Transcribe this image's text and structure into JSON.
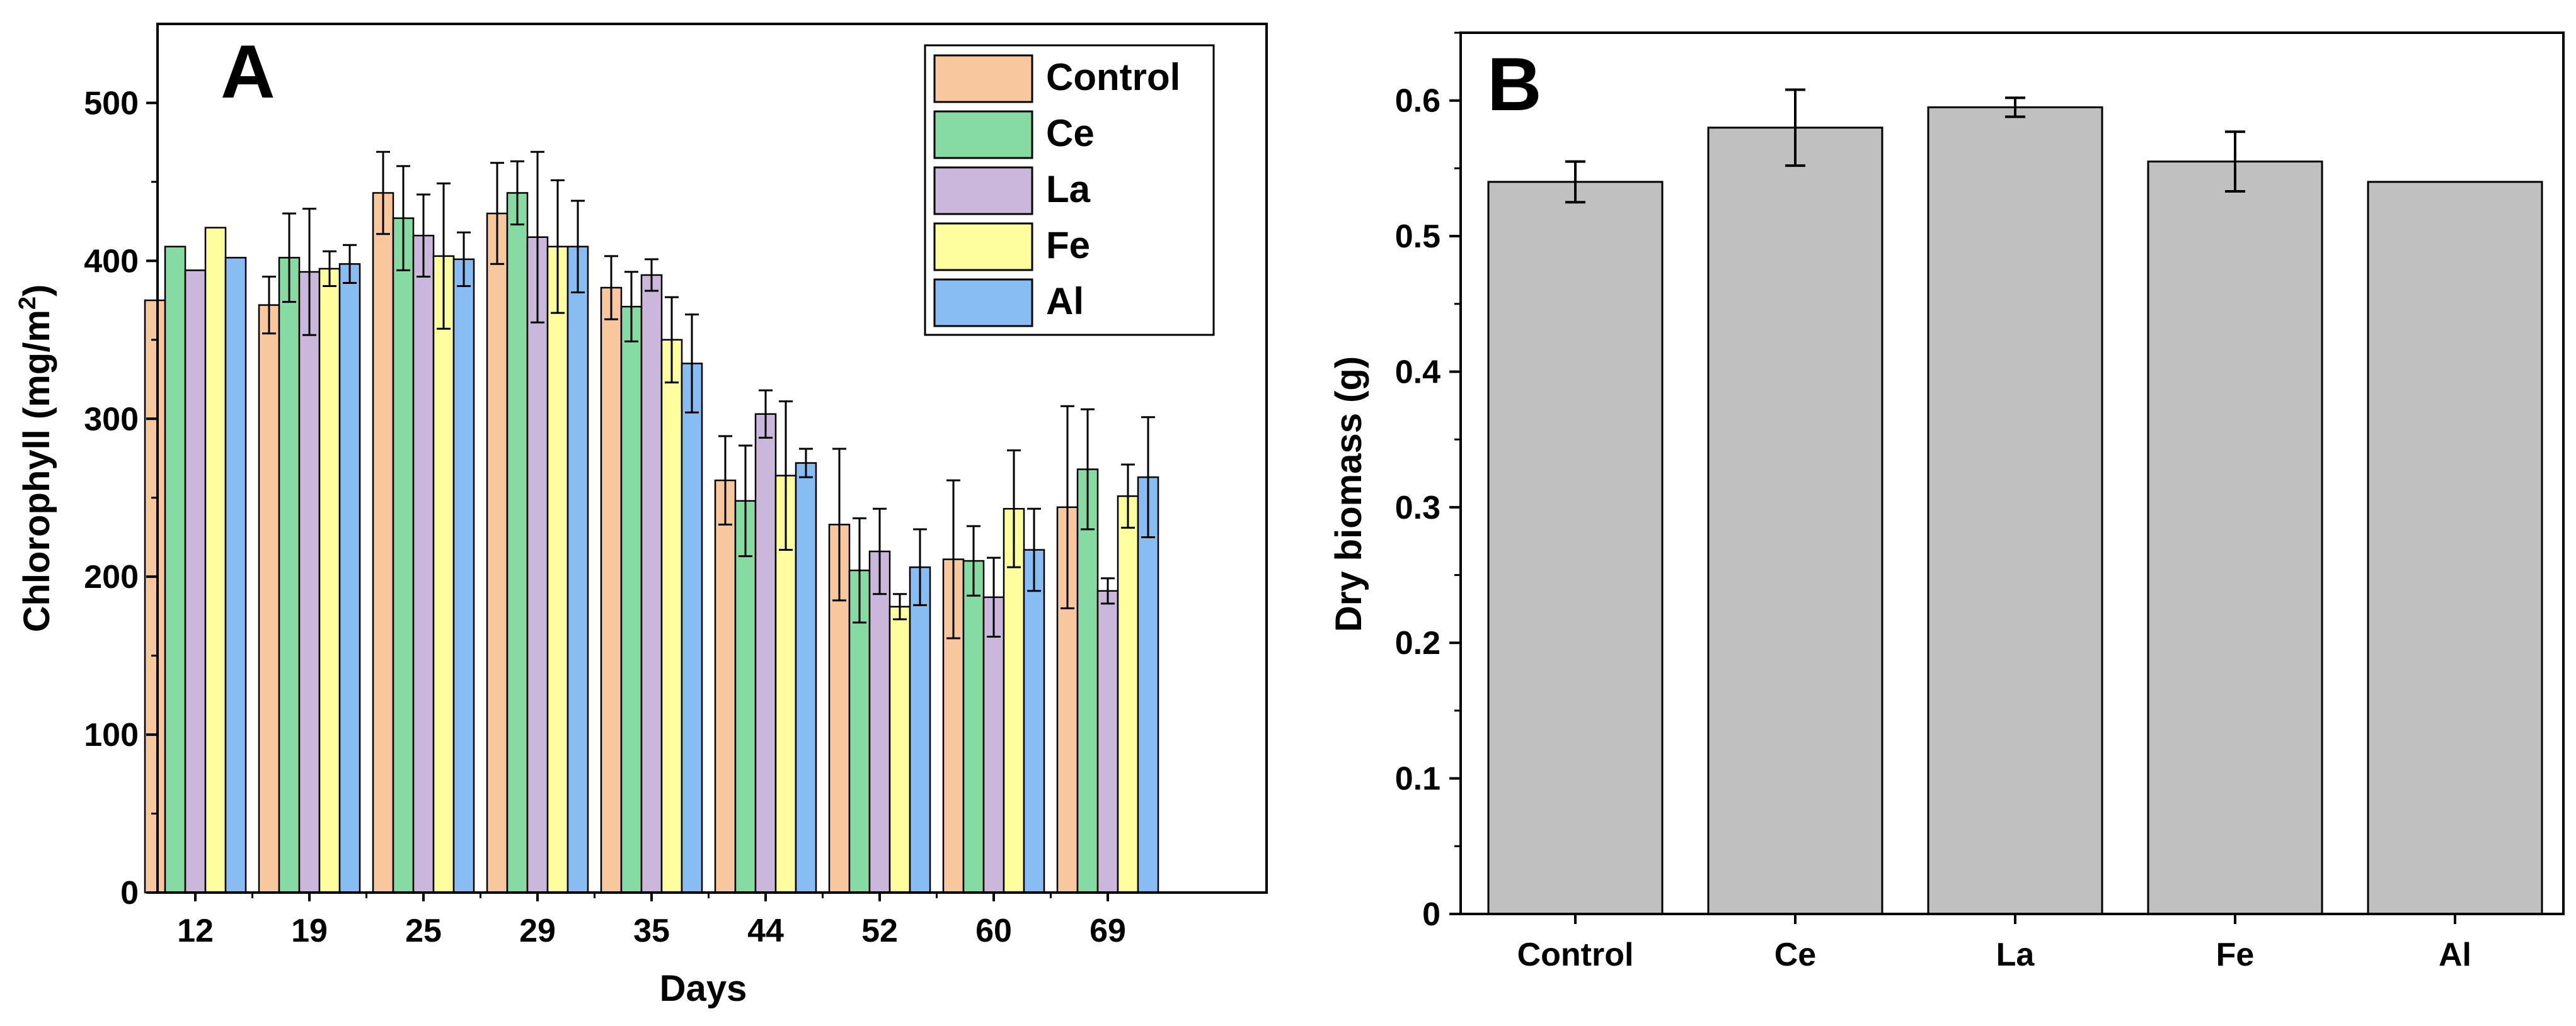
{
  "chart_data": [
    {
      "type": "bar",
      "panel_label": "A",
      "title": "",
      "xlabel": "Days",
      "ylabel": "Chlorophyll (mg/m",
      "ylabel_superscript": "2",
      "ylabel_suffix": ")",
      "ylim": [
        0,
        550
      ],
      "yticks": [
        0,
        100,
        200,
        300,
        400,
        500
      ],
      "grid": false,
      "legend_position": "top-right",
      "categories": [
        "12",
        "19",
        "25",
        "29",
        "35",
        "44",
        "52",
        "60",
        "69"
      ],
      "series": [
        {
          "name": "Control",
          "color": "#f9c79e",
          "values": [
            375,
            372,
            443,
            430,
            383,
            261,
            233,
            211,
            244
          ],
          "errors": [
            0,
            18,
            26,
            32,
            20,
            28,
            48,
            50,
            64
          ]
        },
        {
          "name": "Ce",
          "color": "#86dba3",
          "values": [
            409,
            402,
            427,
            443,
            371,
            248,
            204,
            210,
            268
          ],
          "errors": [
            0,
            28,
            33,
            20,
            22,
            35,
            33,
            22,
            38
          ]
        },
        {
          "name": "La",
          "color": "#cbb7db",
          "values": [
            394,
            393,
            416,
            415,
            391,
            303,
            216,
            187,
            191
          ],
          "errors": [
            0,
            40,
            26,
            54,
            10,
            15,
            27,
            25,
            8
          ]
        },
        {
          "name": "Fe",
          "color": "#fefe9f",
          "values": [
            421,
            395,
            403,
            409,
            350,
            264,
            181,
            243,
            251
          ],
          "errors": [
            0,
            11,
            46,
            42,
            27,
            47,
            8,
            37,
            20
          ]
        },
        {
          "name": "Al",
          "color": "#88bdf3",
          "values": [
            402,
            398,
            401,
            409,
            335,
            272,
            206,
            217,
            263
          ],
          "errors": [
            0,
            12,
            17,
            29,
            31,
            9,
            24,
            26,
            38
          ]
        }
      ]
    },
    {
      "type": "bar",
      "panel_label": "B",
      "title": "",
      "xlabel": "",
      "ylabel": "Dry biomass (g)",
      "ylim": [
        0,
        0.65
      ],
      "yticks": [
        0,
        0.1,
        0.2,
        0.3,
        0.4,
        0.5,
        0.6
      ],
      "ytick_labels": [
        "0",
        "0.1",
        "0.2",
        "0.3",
        "0.4",
        "0.5",
        "0.6"
      ],
      "grid": false,
      "categories": [
        "Control",
        "Ce",
        "La",
        "Fe",
        "Al"
      ],
      "bar_color": "#c0c0c0",
      "values": [
        0.54,
        0.58,
        0.595,
        0.555,
        0.54
      ],
      "errors": [
        0.015,
        0.028,
        0.007,
        0.022,
        0
      ]
    }
  ]
}
